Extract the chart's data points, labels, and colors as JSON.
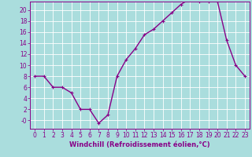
{
  "x": [
    0,
    1,
    2,
    3,
    4,
    5,
    6,
    7,
    8,
    9,
    10,
    11,
    12,
    13,
    14,
    15,
    16,
    17,
    18,
    19,
    20,
    21,
    22,
    23
  ],
  "y": [
    8,
    8,
    6,
    6,
    5,
    2,
    2,
    -0.5,
    1,
    8,
    11,
    13,
    15.5,
    16.5,
    18,
    19.5,
    21,
    22,
    21.5,
    21.5,
    21.5,
    14.5,
    10,
    8
  ],
  "line_color": "#880088",
  "marker": "+",
  "marker_size": 3.5,
  "background_color": "#aadddd",
  "grid_color": "#ffffff",
  "xlabel": "Windchill (Refroidissement éolien,°C)",
  "ylabel": "",
  "xlim": [
    -0.5,
    23.5
  ],
  "ylim": [
    -1.5,
    21.5
  ],
  "yticks": [
    0,
    2,
    4,
    6,
    8,
    10,
    12,
    14,
    16,
    18,
    20
  ],
  "ytick_labels": [
    "-0",
    "2",
    "4",
    "6",
    "8",
    "10",
    "12",
    "14",
    "16",
    "18",
    "20"
  ],
  "xticks": [
    0,
    1,
    2,
    3,
    4,
    5,
    6,
    7,
    8,
    9,
    10,
    11,
    12,
    13,
    14,
    15,
    16,
    17,
    18,
    19,
    20,
    21,
    22,
    23
  ],
  "tick_color": "#880088",
  "label_color": "#880088",
  "font_size": 5.5,
  "xlabel_fontsize": 6,
  "line_width": 1.0,
  "marker_edge_width": 0.8
}
